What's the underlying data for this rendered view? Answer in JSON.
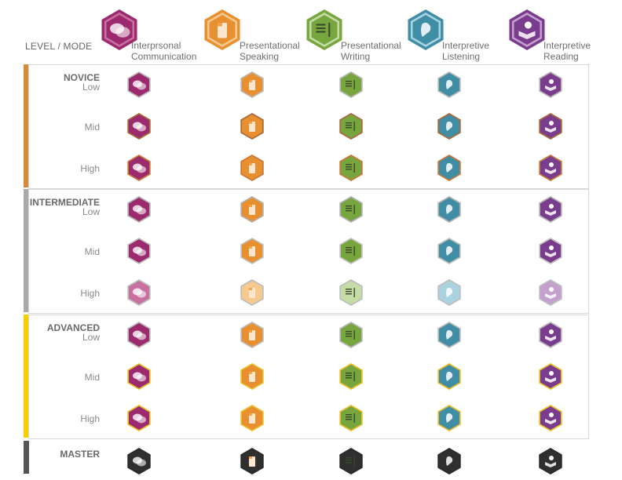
{
  "header": {
    "corner_label": "LEVEL / MODE",
    "modes": [
      {
        "line1": "Interprsonal",
        "line2": "Communication",
        "icon": "speech-bubbles-icon",
        "color": "#9b2a6e",
        "light": "#c8709f"
      },
      {
        "line1": "Presentational",
        "line2": "Speaking",
        "icon": "podium-icon",
        "color": "#e8902f",
        "light": "#f6c98f"
      },
      {
        "line1": "Presentational",
        "line2": "Writing",
        "icon": "writing-icon",
        "color": "#77a63f",
        "light": "#c5dca6"
      },
      {
        "line1": "Interpretive",
        "line2": "Listening",
        "icon": "ear-icon",
        "color": "#3f8ea6",
        "light": "#a9d3e0"
      },
      {
        "line1": "Interpretive",
        "line2": "Reading",
        "icon": "reading-icon",
        "color": "#7a3c8c",
        "light": "#c4a0cf"
      }
    ]
  },
  "groups": [
    {
      "name": "NOVICE",
      "bar_color": "#d78a3a",
      "border": "#d8d8d8",
      "rows": [
        {
          "label": "Low",
          "ring": "#b8b8b8"
        },
        {
          "label": "Mid",
          "ring": "#a86a3a"
        },
        {
          "label": "High",
          "ring": "#c8783a"
        }
      ]
    },
    {
      "name": "INTERMEDIATE",
      "bar_color": "#a9a9ad",
      "border": "#d8d8d8",
      "rows": [
        {
          "label": "Low",
          "ring": "#b0b0b0"
        },
        {
          "label": "Mid",
          "ring": "#c0c0c0"
        },
        {
          "label": "High",
          "ring": "#bdbdbd"
        }
      ]
    },
    {
      "name": "ADVANCED",
      "bar_color": "#f7cf00",
      "border": "#d8d8d8",
      "rows": [
        {
          "label": "Low",
          "ring": "#b8b8b8"
        },
        {
          "label": "Mid",
          "ring": "#e9bd2a"
        },
        {
          "label": "High",
          "ring": "#e9bd2a"
        }
      ]
    },
    {
      "name": "MASTER",
      "bar_color": "#555555",
      "border": "#d8d8d8",
      "rows": [
        {
          "label": "",
          "ring": "#2a2a2a"
        }
      ]
    }
  ]
}
